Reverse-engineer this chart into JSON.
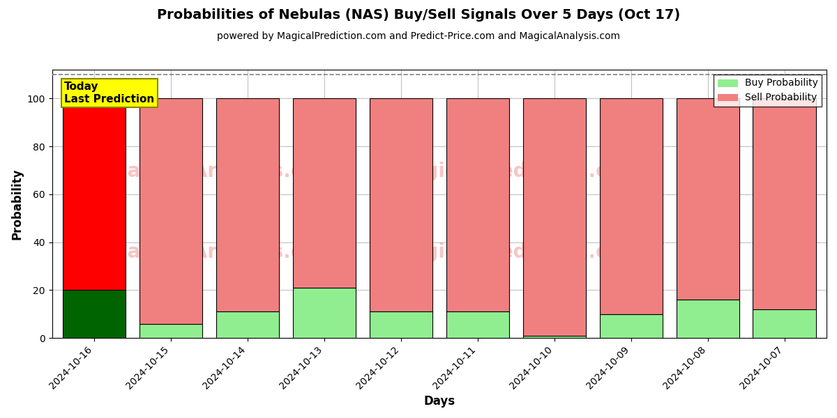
{
  "title": "Probabilities of Nebulas (NAS) Buy/Sell Signals Over 5 Days (Oct 17)",
  "subtitle": "powered by MagicalPrediction.com and Predict-Price.com and MagicalAnalysis.com",
  "xlabel": "Days",
  "ylabel": "Probability",
  "categories": [
    "2024-10-16",
    "2024-10-15",
    "2024-10-14",
    "2024-10-13",
    "2024-10-12",
    "2024-10-11",
    "2024-10-10",
    "2024-10-09",
    "2024-10-08",
    "2024-10-07"
  ],
  "buy_values": [
    20,
    6,
    11,
    21,
    11,
    11,
    1,
    10,
    16,
    12
  ],
  "sell_values": [
    80,
    94,
    89,
    79,
    89,
    89,
    99,
    90,
    84,
    88
  ],
  "buy_color_today": "#006400",
  "sell_color_today": "#FF0000",
  "buy_color_normal": "#90EE90",
  "sell_color_normal": "#F08080",
  "today_label_bg": "#FFFF00",
  "today_label_text": "Today\nLast Prediction",
  "ylim": [
    0,
    112
  ],
  "yticks": [
    0,
    20,
    40,
    60,
    80,
    100
  ],
  "dashed_line_y": 110,
  "legend_buy": "Buy Probability",
  "legend_sell": "Sell Probability",
  "background_color": "#ffffff",
  "grid_color": "#bbbbbb",
  "bar_edge_color": "#000000",
  "bar_width": 0.82
}
